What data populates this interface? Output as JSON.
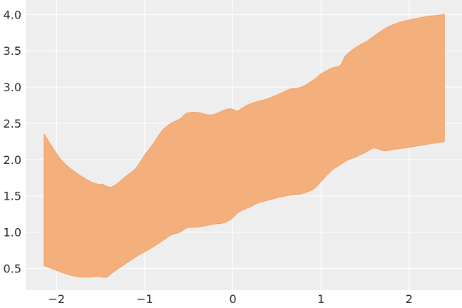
{
  "chart_data": {
    "type": "area",
    "title": "",
    "xlabel": "",
    "ylabel": "",
    "xlim": [
      -2.35,
      2.6
    ],
    "ylim": [
      0.2,
      4.2
    ],
    "grid": true,
    "background": "#eeeeee",
    "fill_color": "#f4b07c",
    "edge_color": "#f0a064",
    "x_ticks": [
      -2,
      -1,
      0,
      1,
      2
    ],
    "x_tick_labels": [
      "−2",
      "−1",
      "0",
      "1",
      "2"
    ],
    "y_ticks": [
      0.5,
      1.0,
      1.5,
      2.0,
      2.5,
      3.0,
      3.5,
      4.0
    ],
    "y_tick_labels": [
      "0.5",
      "1.0",
      "1.5",
      "2.0",
      "2.5",
      "3.0",
      "3.5",
      "4.0"
    ],
    "series": [
      {
        "x": [
          -2.14,
          -1.95,
          -1.78,
          -1.62,
          -1.53,
          -1.48,
          -1.43,
          -1.38,
          -1.32,
          -1.2,
          -1.1,
          -1.0,
          -0.9,
          -0.8,
          -0.7,
          -0.6,
          -0.52,
          -0.4,
          -0.3,
          -0.22,
          -0.1,
          -0.02,
          0.05,
          0.12,
          0.2,
          0.28,
          0.4,
          0.52,
          0.65,
          0.78,
          0.92,
          1.0,
          1.12,
          1.22,
          1.28,
          1.4,
          1.52,
          1.6,
          1.72,
          1.82,
          1.95,
          2.1,
          2.25,
          2.4
        ],
        "upper": [
          2.35,
          2.0,
          1.82,
          1.7,
          1.66,
          1.66,
          1.63,
          1.62,
          1.66,
          1.78,
          1.88,
          2.06,
          2.22,
          2.4,
          2.5,
          2.56,
          2.64,
          2.65,
          2.62,
          2.62,
          2.68,
          2.7,
          2.67,
          2.72,
          2.77,
          2.8,
          2.84,
          2.9,
          2.97,
          3.0,
          3.1,
          3.18,
          3.26,
          3.3,
          3.43,
          3.55,
          3.63,
          3.7,
          3.8,
          3.86,
          3.91,
          3.95,
          3.98,
          4.0
        ],
        "lower": [
          0.54,
          0.45,
          0.39,
          0.38,
          0.39,
          0.38,
          0.38,
          0.43,
          0.48,
          0.58,
          0.66,
          0.73,
          0.8,
          0.88,
          0.96,
          1.0,
          1.06,
          1.07,
          1.09,
          1.11,
          1.13,
          1.18,
          1.26,
          1.31,
          1.35,
          1.4,
          1.44,
          1.48,
          1.51,
          1.53,
          1.6,
          1.7,
          1.85,
          1.93,
          1.98,
          2.04,
          2.11,
          2.16,
          2.12,
          2.14,
          2.16,
          2.19,
          2.22,
          2.25
        ]
      }
    ]
  }
}
